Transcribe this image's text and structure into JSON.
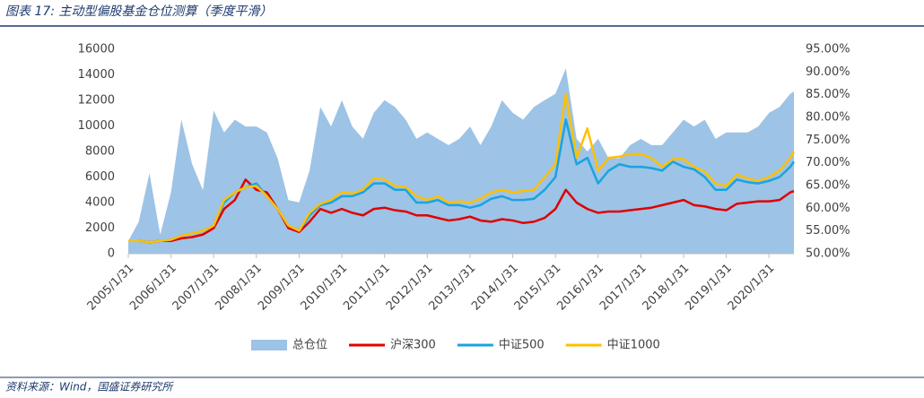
{
  "header": {
    "title": "图表 17: 主动型偏股基金仓位测算（季度平滑）"
  },
  "chart_data": {
    "type": "line",
    "x": [
      "2005/1/31",
      "2005/4/30",
      "2005/7/31",
      "2005/10/31",
      "2006/1/31",
      "2006/4/30",
      "2006/7/31",
      "2006/10/31",
      "2007/1/31",
      "2007/4/30",
      "2007/7/31",
      "2007/10/31",
      "2008/1/31",
      "2008/4/30",
      "2008/7/31",
      "2008/10/31",
      "2009/1/31",
      "2009/4/30",
      "2009/7/31",
      "2009/10/31",
      "2010/1/31",
      "2010/4/30",
      "2010/7/31",
      "2010/10/31",
      "2011/1/31",
      "2011/4/30",
      "2011/7/31",
      "2011/10/31",
      "2012/1/31",
      "2012/4/30",
      "2012/7/31",
      "2012/10/31",
      "2013/1/31",
      "2013/4/30",
      "2013/7/31",
      "2013/10/31",
      "2014/1/31",
      "2014/4/30",
      "2014/7/31",
      "2014/10/31",
      "2015/1/31",
      "2015/4/30",
      "2015/7/31",
      "2015/10/31",
      "2016/1/31",
      "2016/4/30",
      "2016/7/31",
      "2016/10/31",
      "2017/1/31",
      "2017/4/30",
      "2017/7/31",
      "2017/10/31",
      "2018/1/31",
      "2018/4/30",
      "2018/7/31",
      "2018/10/31",
      "2019/1/31",
      "2019/4/30",
      "2019/7/31",
      "2019/10/31",
      "2020/1/31",
      "2020/4/30",
      "2020/7/31",
      "2020/8/31"
    ],
    "xlim": [
      "2005/1/31",
      "2020/8/31"
    ],
    "xticks": [
      "2005/1/31",
      "2006/1/31",
      "2007/1/31",
      "2008/1/31",
      "2009/1/31",
      "2010/1/31",
      "2011/1/31",
      "2012/1/31",
      "2013/1/31",
      "2014/1/31",
      "2015/1/31",
      "2016/1/31",
      "2017/1/31",
      "2018/1/31",
      "2019/1/31",
      "2020/1/31"
    ],
    "ylim": [
      0,
      16000
    ],
    "yticks": [
      0,
      2000,
      4000,
      6000,
      8000,
      10000,
      12000,
      14000,
      16000
    ],
    "y2lim": [
      50,
      95
    ],
    "y2ticks": [
      {
        "value": 50,
        "label": "50.00%"
      },
      {
        "value": 55,
        "label": "55.00%"
      },
      {
        "value": 60,
        "label": "60.00%"
      },
      {
        "value": 65,
        "label": "65.00%"
      },
      {
        "value": 70,
        "label": "70.00%"
      },
      {
        "value": 75,
        "label": "75.00%"
      },
      {
        "value": 80,
        "label": "80.00%"
      },
      {
        "value": 85,
        "label": "85.00%"
      },
      {
        "value": 90,
        "label": "90.00%"
      },
      {
        "value": 95,
        "label": "95.00%"
      }
    ],
    "legend": "bottom",
    "series": [
      {
        "name": "总仓位",
        "type": "area",
        "axis": "y2",
        "color": "#9dc3e6",
        "values": [
          52.8,
          57,
          67.7,
          54.2,
          63.5,
          79.5,
          69.7,
          64,
          81.5,
          76.7,
          79.5,
          78,
          78,
          76.7,
          71,
          61.8,
          61.3,
          68.3,
          82.3,
          78,
          83.8,
          78,
          75.3,
          81,
          83.8,
          82.3,
          79.5,
          75.3,
          76.7,
          75.3,
          73.9,
          75.3,
          78,
          73.9,
          78,
          83.8,
          81,
          79.5,
          82.3,
          83.8,
          85.2,
          90.8,
          75.3,
          72.5,
          75.3,
          71,
          71,
          73.9,
          75.3,
          73.9,
          73.9,
          76.7,
          79.5,
          78,
          79.5,
          75.3,
          76.7,
          76.7,
          76.7,
          78,
          81,
          82.3,
          85.2,
          85.7
        ]
      },
      {
        "name": "沪深300",
        "color": "#e00000",
        "values": [
          1000,
          1000,
          900,
          1000,
          1000,
          1200,
          1300,
          1500,
          2000,
          3500,
          4200,
          5800,
          5000,
          4800,
          3500,
          2000,
          1700,
          2500,
          3500,
          3200,
          3500,
          3200,
          3000,
          3500,
          3600,
          3400,
          3300,
          3000,
          3000,
          2800,
          2600,
          2700,
          2900,
          2600,
          2500,
          2700,
          2600,
          2400,
          2500,
          2800,
          3500,
          5000,
          4000,
          3500,
          3200,
          3300,
          3300,
          3400,
          3500,
          3600,
          3800,
          4000,
          4200,
          3800,
          3700,
          3500,
          3400,
          3900,
          4000,
          4100,
          4100,
          4200,
          4800,
          4900
        ]
      },
      {
        "name": "中证500",
        "color": "#1aa3e0",
        "values": [
          1000,
          1000,
          900,
          1000,
          1100,
          1400,
          1600,
          1800,
          2200,
          4000,
          4800,
          5200,
          5500,
          4500,
          3500,
          2200,
          1800,
          3000,
          3800,
          4000,
          4500,
          4500,
          4800,
          5500,
          5500,
          5000,
          5000,
          4000,
          4000,
          4200,
          3800,
          3800,
          3600,
          3800,
          4300,
          4500,
          4200,
          4200,
          4300,
          5000,
          6000,
          10500,
          7000,
          7500,
          5500,
          6500,
          7000,
          6800,
          6800,
          6700,
          6500,
          7200,
          6800,
          6600,
          6000,
          5000,
          5000,
          5800,
          5600,
          5500,
          5700,
          6000,
          6800,
          7200
        ]
      },
      {
        "name": "中证1000",
        "color": "#ffc000",
        "values": [
          1000,
          1000,
          900,
          1000,
          1100,
          1400,
          1600,
          1800,
          2200,
          4200,
          4800,
          5200,
          5300,
          4500,
          3500,
          2200,
          1800,
          3200,
          3900,
          4200,
          4800,
          4700,
          5000,
          5900,
          5800,
          5300,
          5200,
          4500,
          4200,
          4500,
          4000,
          4100,
          4000,
          4300,
          4800,
          5000,
          4800,
          4900,
          5000,
          6000,
          7000,
          12500,
          7500,
          9800,
          6500,
          7500,
          7600,
          7800,
          7800,
          7500,
          6800,
          7400,
          7400,
          6800,
          6400,
          5500,
          5300,
          6200,
          5900,
          5700,
          6000,
          6500,
          7500,
          8000
        ]
      }
    ]
  },
  "footer": {
    "source": "资料来源：Wind，国盛证券研究所"
  }
}
